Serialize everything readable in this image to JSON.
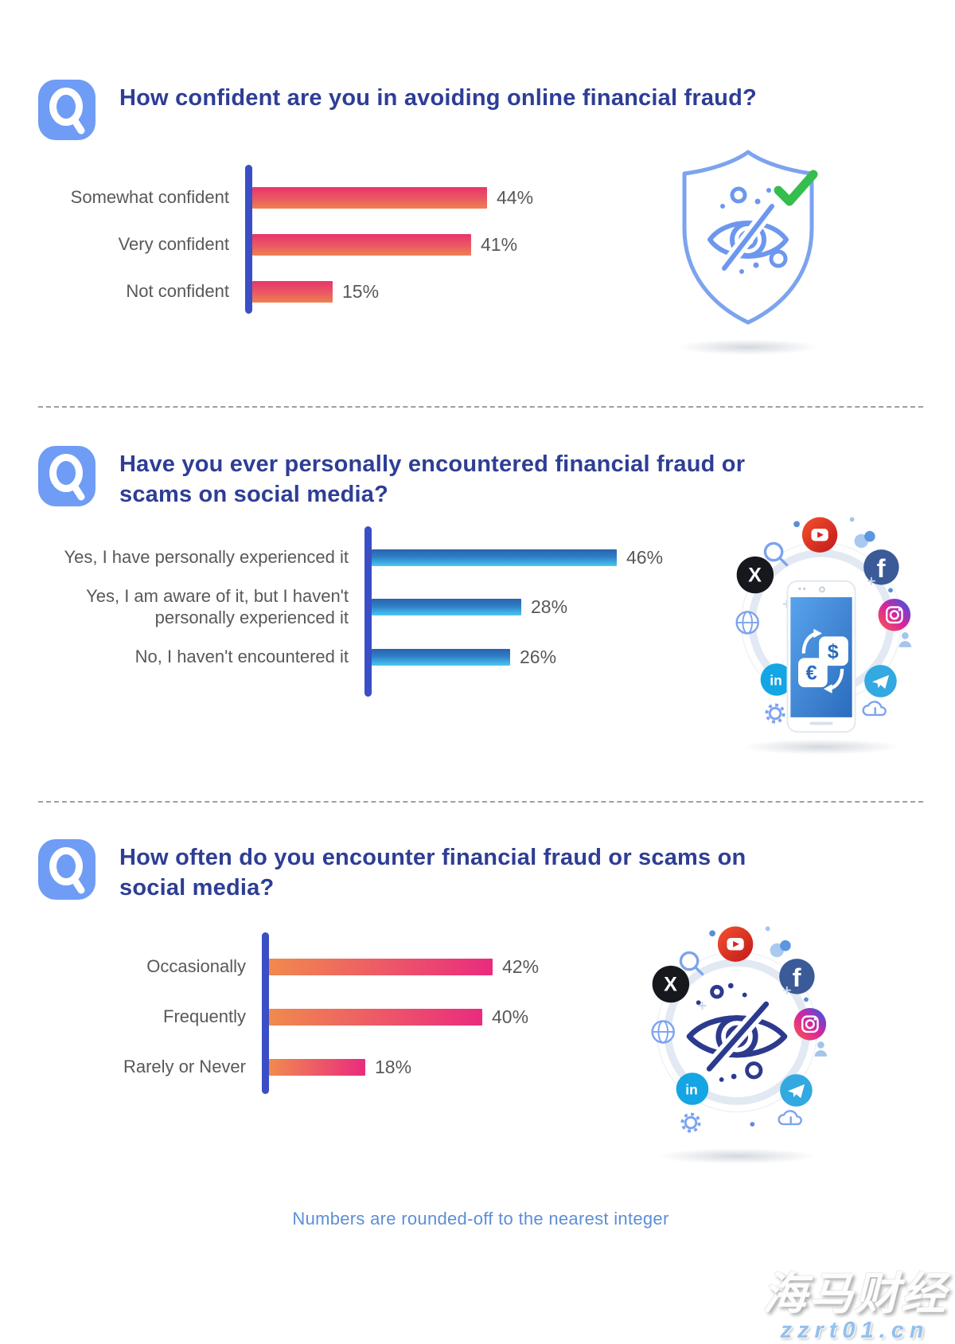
{
  "colors": {
    "title_blue": "#2e3e95",
    "axis_blue": "#3a4ec5",
    "label_gray": "#57585b",
    "footer_blue": "#5d8ed6",
    "question_icon_blue": "#6f9cf5",
    "check_green": "#35bd4e",
    "bar_gradient_q1": [
      "#e8346c",
      "#ef8150"
    ],
    "bar_gradient_q2": [
      "#2a63ae",
      "#49c8f2"
    ],
    "bar_gradient_q3": [
      "#f08a4e",
      "#ea2b7e"
    ]
  },
  "sections": [
    {
      "question": "How confident are you in avoiding online financial fraud?",
      "illustration": "shield-hidden-eye-check"
    },
    {
      "question": "Have you ever personally encountered financial fraud or scams on social media?",
      "illustration": "phone-currency-social-media-ring"
    },
    {
      "question": "How often do you encounter financial fraud or scams on social media?",
      "illustration": "hidden-eye-social-media-ring"
    }
  ],
  "chart_data": [
    {
      "type": "bar",
      "orientation": "horizontal",
      "title": "How confident are you in avoiding online financial fraud?",
      "categories": [
        "Somewhat confident",
        "Very confident",
        "Not confident"
      ],
      "values": [
        44,
        41,
        15
      ],
      "unit": "%",
      "xlim": [
        0,
        50
      ],
      "grid": false,
      "value_labels": "end-of-bar"
    },
    {
      "type": "bar",
      "orientation": "horizontal",
      "title": "Have you ever personally encountered financial fraud or scams on social media?",
      "categories": [
        "Yes, I have personally experienced it",
        "Yes, I am aware of it, but I haven't personally experienced it",
        "No, I haven't encountered it"
      ],
      "values": [
        46,
        28,
        26
      ],
      "unit": "%",
      "xlim": [
        0,
        50
      ],
      "grid": false,
      "value_labels": "end-of-bar"
    },
    {
      "type": "bar",
      "orientation": "horizontal",
      "title": "How often do you encounter financial fraud or scams on social media?",
      "categories": [
        "Occasionally",
        "Frequently",
        "Rarely or Never"
      ],
      "values": [
        42,
        40,
        18
      ],
      "unit": "%",
      "xlim": [
        0,
        50
      ],
      "grid": false,
      "value_labels": "end-of-bar"
    }
  ],
  "footer": {
    "note": "Numbers are rounded-off to the nearest integer"
  },
  "watermark": {
    "line1": "海马财经",
    "line2": "zzrt01.cn"
  }
}
